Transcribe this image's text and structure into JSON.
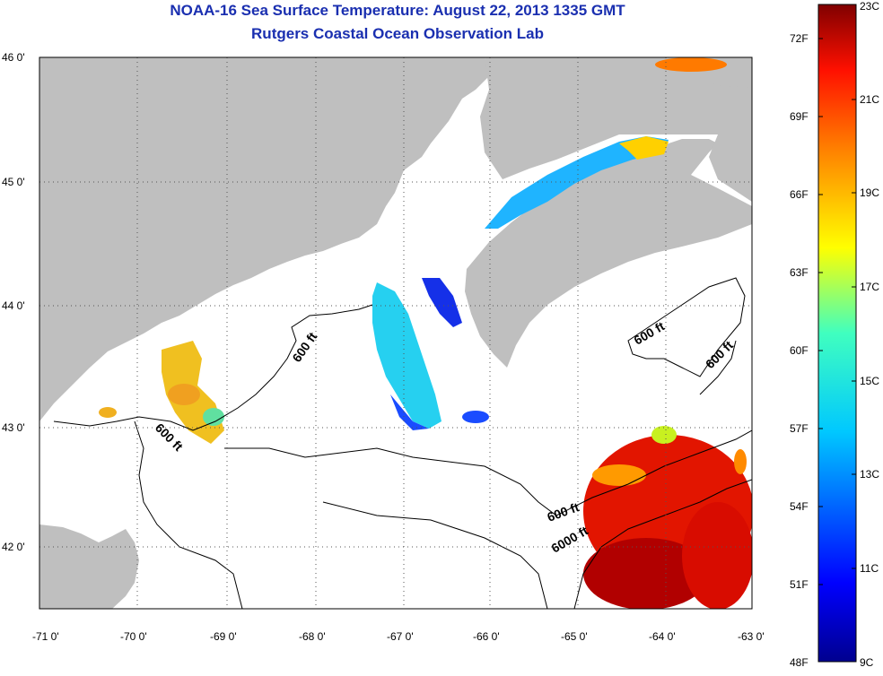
{
  "title": "NOAA-16 Sea Surface Temperature:  August 22, 2013 1335 GMT",
  "subtitle": "Rutgers Coastal Ocean Observation Lab",
  "lat_ticks": [
    "46 0'",
    "45 0'",
    "44 0'",
    "43 0'",
    "42 0'"
  ],
  "lon_ticks": [
    "-71 0'",
    "-70 0'",
    "-69 0'",
    "-68 0'",
    "-67 0'",
    "-66 0'",
    "-65 0'",
    "-64 0'",
    "-63 0'"
  ],
  "contour_labels": [
    "600 ft",
    "600 ft",
    "600 ft",
    "600 ft",
    "6000 ft"
  ],
  "colorbar": {
    "fahrenheit": [
      "72F",
      "69F",
      "66F",
      "63F",
      "60F",
      "57F",
      "54F",
      "51F",
      "48F"
    ],
    "celsius": [
      "23C",
      "21C",
      "19C",
      "17C",
      "15C",
      "13C",
      "11C",
      "9C"
    ]
  },
  "colors": {
    "land": "#bfbfbf",
    "ocean": "#ffffff",
    "title": "#1a2fb0"
  }
}
